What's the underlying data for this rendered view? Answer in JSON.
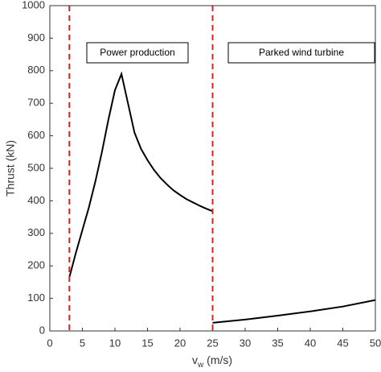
{
  "chart_data": {
    "type": "line",
    "xlabel": {
      "symbol": "v",
      "subscript": "w",
      "unit": "(m/s)"
    },
    "ylabel": "Thrust (kN)",
    "xlim": [
      0,
      50
    ],
    "xticks": [
      0,
      5,
      10,
      15,
      20,
      25,
      30,
      35,
      40,
      45,
      50
    ],
    "ylim": [
      0,
      1000
    ],
    "yticks": [
      0,
      100,
      200,
      300,
      400,
      500,
      600,
      700,
      800,
      900,
      1000
    ],
    "grid": false,
    "series": [
      {
        "color": "#000000",
        "x": [
          3,
          4,
          5,
          6,
          7,
          8,
          9,
          10,
          11,
          12,
          13,
          14,
          15,
          16,
          17,
          18,
          19,
          20,
          21,
          22,
          23,
          24,
          25
        ],
        "values": [
          165,
          240,
          310,
          380,
          460,
          550,
          650,
          740,
          790,
          700,
          610,
          560,
          525,
          495,
          470,
          450,
          432,
          418,
          405,
          395,
          385,
          376,
          368
        ]
      },
      {
        "color": "#000000",
        "x": [
          25,
          30,
          35,
          40,
          45,
          50
        ],
        "values": [
          25,
          35,
          47,
          60,
          75,
          95
        ]
      }
    ],
    "vlines": [
      {
        "x": 3,
        "color": "#e02020"
      },
      {
        "x": 25,
        "color": "#e02020"
      }
    ],
    "annotations": [
      "Power production",
      "Parked wind turbine"
    ]
  }
}
